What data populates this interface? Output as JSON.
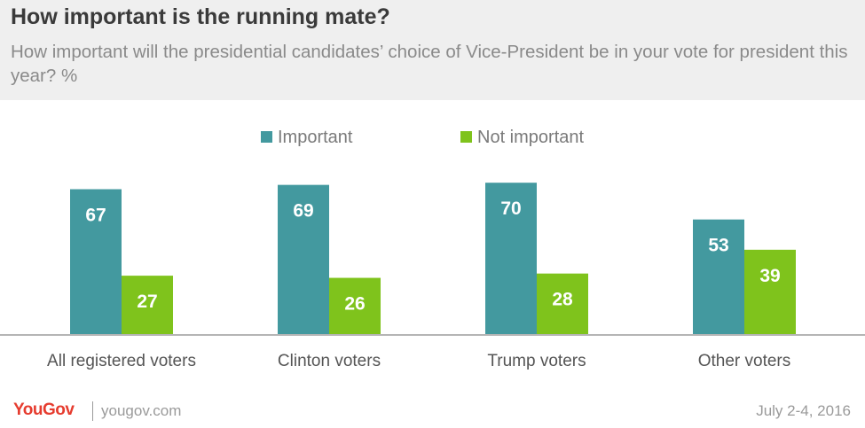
{
  "header": {
    "title": "How important is the running mate?",
    "subtitle": "How important will the presidential candidates’ choice of Vice-President be in your vote for president this year? %"
  },
  "footer": {
    "logo_you": "You",
    "logo_gov": "Gov",
    "url": "yougov.com",
    "date": "July 2-4, 2016"
  },
  "colors": {
    "important": "#43999f",
    "not_important": "#7fc31c"
  },
  "chart_data": {
    "type": "bar",
    "categories": [
      "All registered voters",
      "Clinton voters",
      "Trump voters",
      "Other voters"
    ],
    "series": [
      {
        "name": "Important",
        "values": [
          67,
          69,
          70,
          53
        ]
      },
      {
        "name": "Not important",
        "values": [
          27,
          26,
          28,
          39
        ]
      }
    ],
    "ylim": [
      0,
      100
    ],
    "legend": "top-center",
    "grid": false
  }
}
